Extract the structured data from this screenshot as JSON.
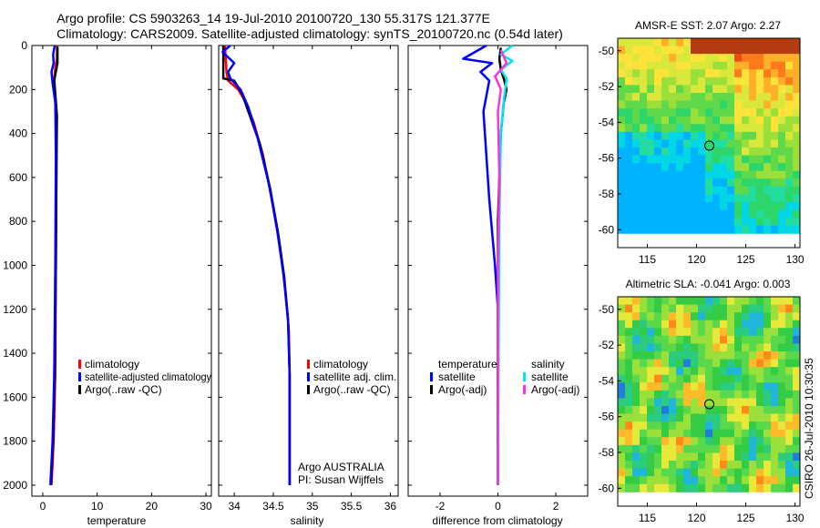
{
  "titles": {
    "line1": "Argo profile: CS 5903263_14 19-Jul-2010 20100720_130 55.317S 121.377E",
    "line2": "Climatology: CARS2009. Satellite-adjusted climatology: synTS_20100720.nc (0.54d later)"
  },
  "colors": {
    "red": "#ff0000",
    "blue": "#0000ff",
    "black": "#000000",
    "cyan": "#00e5ee",
    "magenta": "#ff33dd"
  },
  "chart_data": [
    {
      "type": "line",
      "id": "temperature",
      "xlabel": "temperature",
      "ylabel": "",
      "xlim": [
        -2,
        31
      ],
      "ylim": [
        2050,
        0
      ],
      "xticks": [
        "0",
        "10",
        "20",
        "30"
      ],
      "xtick_values": [
        0,
        10,
        20,
        30
      ],
      "yticks": [
        "0",
        "200",
        "400",
        "600",
        "800",
        "1000",
        "1200",
        "1400",
        "1600",
        "1800",
        "2000"
      ],
      "ytick_values": [
        0,
        200,
        400,
        600,
        800,
        1000,
        1200,
        1400,
        1600,
        1800,
        2000
      ],
      "legend": [
        "climatology",
        "satellite-adjusted climatology",
        "Argo(..raw -QC)"
      ],
      "series": [
        {
          "name": "climatology",
          "color": "red",
          "points": [
            [
              2.6,
              0
            ],
            [
              2.6,
              60
            ],
            [
              2.3,
              100
            ],
            [
              2.1,
              150
            ],
            [
              2.2,
              200
            ],
            [
              2.5,
              300
            ],
            [
              2.5,
              600
            ],
            [
              2.4,
              1000
            ],
            [
              2.3,
              1500
            ],
            [
              2.0,
              1800
            ],
            [
              1.6,
              2000
            ]
          ]
        },
        {
          "name": "Argo(..raw -QC)",
          "color": "black",
          "points": [
            [
              2.7,
              5
            ],
            [
              2.7,
              80
            ],
            [
              2.4,
              120
            ],
            [
              2.1,
              160
            ],
            [
              2.3,
              220
            ],
            [
              2.6,
              320
            ],
            [
              2.5,
              600
            ],
            [
              2.4,
              1000
            ],
            [
              2.2,
              1500
            ],
            [
              1.9,
              1800
            ],
            [
              1.5,
              2000
            ]
          ]
        },
        {
          "name": "satellite-adjusted climatology",
          "color": "blue",
          "points": [
            [
              2.2,
              0
            ],
            [
              1.9,
              40
            ],
            [
              2.0,
              80
            ],
            [
              1.6,
              120
            ],
            [
              1.8,
              170
            ],
            [
              2.3,
              260
            ],
            [
              2.4,
              500
            ],
            [
              2.3,
              1000
            ],
            [
              2.1,
              1500
            ],
            [
              1.8,
              1800
            ],
            [
              1.4,
              2000
            ]
          ]
        }
      ]
    },
    {
      "type": "line",
      "id": "salinity",
      "xlabel": "salinity",
      "xlim": [
        33.8,
        36.1
      ],
      "ylim": [
        2050,
        0
      ],
      "xticks": [
        "34",
        "34.5",
        "35",
        "35.5",
        "36"
      ],
      "xtick_values": [
        34,
        34.5,
        35,
        35.5,
        36
      ],
      "legend": [
        "climatology",
        "satellite adj. clim.",
        "Argo(..raw -QC)"
      ],
      "annotation": [
        "Argo AUSTRALIA",
        "PI: Susan Wijffels"
      ],
      "series": [
        {
          "name": "climatology",
          "color": "red",
          "points": [
            [
              33.88,
              0
            ],
            [
              33.9,
              120
            ],
            [
              33.92,
              160
            ],
            [
              34.05,
              200
            ],
            [
              34.15,
              260
            ],
            [
              34.25,
              350
            ],
            [
              34.37,
              500
            ],
            [
              34.48,
              700
            ],
            [
              34.58,
              900
            ],
            [
              34.65,
              1100
            ],
            [
              34.7,
              1300
            ],
            [
              34.71,
              1500
            ],
            [
              34.71,
              2000
            ]
          ]
        },
        {
          "name": "Argo(..raw -QC)",
          "color": "black",
          "points": [
            [
              33.86,
              0
            ],
            [
              33.86,
              150
            ],
            [
              34.0,
              160
            ],
            [
              34.1,
              220
            ],
            [
              34.2,
              320
            ],
            [
              34.33,
              450
            ],
            [
              34.46,
              650
            ],
            [
              34.56,
              850
            ],
            [
              34.64,
              1050
            ],
            [
              34.69,
              1250
            ],
            [
              34.71,
              1500
            ],
            [
              34.71,
              2000
            ]
          ]
        },
        {
          "name": "satellite adj. clim.",
          "color": "blue",
          "points": [
            [
              33.95,
              0
            ],
            [
              33.85,
              30
            ],
            [
              34.0,
              80
            ],
            [
              33.92,
              120
            ],
            [
              33.95,
              150
            ],
            [
              34.08,
              200
            ],
            [
              34.18,
              280
            ],
            [
              34.3,
              420
            ],
            [
              34.45,
              640
            ],
            [
              34.55,
              840
            ],
            [
              34.63,
              1040
            ],
            [
              34.69,
              1250
            ],
            [
              34.71,
              1500
            ],
            [
              34.71,
              2000
            ]
          ]
        }
      ]
    },
    {
      "type": "line",
      "id": "difference",
      "xlabel": "difference from climatology",
      "xlim": [
        -3.1,
        3.1
      ],
      "ylim": [
        2050,
        0
      ],
      "xticks": [
        "-2",
        "0",
        "2"
      ],
      "xtick_values": [
        -2,
        0,
        2
      ],
      "legend_temperature": {
        "title": "temperature",
        "items": [
          "satellite",
          "Argo(-adj)"
        ]
      },
      "legend_salinity": {
        "title": "salinity",
        "items": [
          "satellite",
          "Argo(-adj)"
        ]
      },
      "series": [
        {
          "name": "temperature satellite",
          "color": "blue",
          "points": [
            [
              -0.4,
              0
            ],
            [
              -1.2,
              60
            ],
            [
              -0.2,
              80
            ],
            [
              -0.6,
              120
            ],
            [
              -0.3,
              160
            ],
            [
              -0.5,
              300
            ],
            [
              -0.3,
              700
            ],
            [
              -0.1,
              1000
            ],
            [
              0,
              1200
            ],
            [
              0,
              2000
            ]
          ]
        },
        {
          "name": "temperature Argo(-adj)",
          "color": "black",
          "points": [
            [
              0.1,
              10
            ],
            [
              0.05,
              60
            ],
            [
              0.1,
              110
            ],
            [
              0.2,
              150
            ],
            [
              0.3,
              200
            ],
            [
              0.2,
              260
            ],
            [
              0.1,
              400
            ],
            [
              0,
              800
            ],
            [
              0,
              2000
            ]
          ]
        },
        {
          "name": "salinity satellite",
          "color": "cyan",
          "points": [
            [
              0.5,
              0
            ],
            [
              0.1,
              40
            ],
            [
              0.5,
              70
            ],
            [
              0.1,
              110
            ],
            [
              0.3,
              150
            ],
            [
              0.2,
              250
            ],
            [
              0.1,
              400
            ],
            [
              0.05,
              800
            ],
            [
              0,
              2000
            ]
          ]
        },
        {
          "name": "salinity Argo(-adj)",
          "color": "magenta",
          "points": [
            [
              0.1,
              20
            ],
            [
              0.3,
              80
            ],
            [
              -0.1,
              140
            ],
            [
              0.1,
              200
            ],
            [
              0.0,
              300
            ],
            [
              0.05,
              600
            ],
            [
              0.0,
              1000
            ],
            [
              0,
              2000
            ]
          ]
        }
      ]
    },
    {
      "type": "heatmap",
      "id": "sst-map",
      "title": "AMSR-E SST: 2.07 Argo: 2.27",
      "xlim": [
        112,
        130.5
      ],
      "ylim": [
        -61,
        -49.3
      ],
      "xticks": [
        "115",
        "120",
        "125",
        "130"
      ],
      "xtick_values": [
        115,
        120,
        125,
        130
      ],
      "yticks": [
        "-50",
        "-52",
        "-54",
        "-56",
        "-58",
        "-60"
      ],
      "ytick_values": [
        -50,
        -52,
        -54,
        -56,
        -58,
        -60
      ],
      "marker": {
        "lon": 121.3,
        "lat": -55.3
      }
    },
    {
      "type": "heatmap",
      "id": "sla-map",
      "title": "Altimetric SLA: -0.041 Argo: 0.003",
      "xlim": [
        112,
        130.5
      ],
      "ylim": [
        -61,
        -49.3
      ],
      "xticks": [
        "115",
        "120",
        "125",
        "130"
      ],
      "xtick_values": [
        115,
        120,
        125,
        130
      ],
      "yticks": [
        "-50",
        "-52",
        "-54",
        "-56",
        "-58",
        "-60"
      ],
      "ytick_values": [
        -50,
        -52,
        -54,
        -56,
        -58,
        -60
      ],
      "marker": {
        "lon": 121.3,
        "lat": -55.3
      }
    }
  ],
  "side_stamp": "CSIRO 26-Jul-2010 10:30:35"
}
